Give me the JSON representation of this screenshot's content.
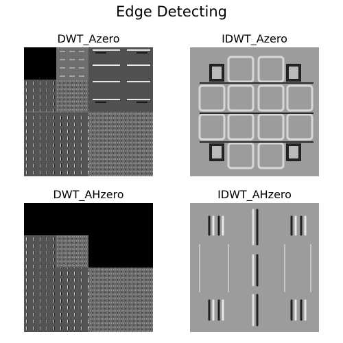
{
  "figure": {
    "title": "Edge Detecting",
    "panels": [
      {
        "title": "DWT_Azero",
        "content": "wavelet decomposition with approximation band set to zero (black)"
      },
      {
        "title": "IDWT_Azero",
        "content": "reconstructed image: gray background with grid of rounded square edges"
      },
      {
        "title": "DWT_AHzero",
        "content": "wavelet decomposition with approximation and horizontal bands set to zero (black)"
      },
      {
        "title": "IDWT_AHzero",
        "content": "reconstructed image: gray background with vertical edge stripes"
      }
    ]
  }
}
